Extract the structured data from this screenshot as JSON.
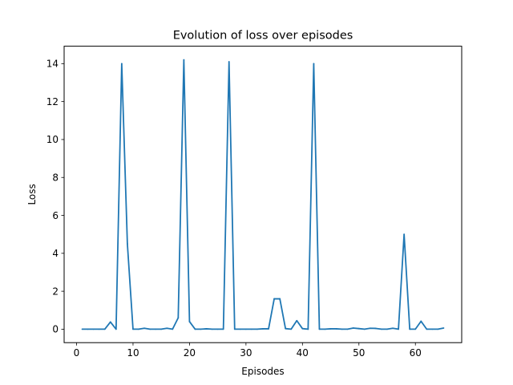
{
  "chart_data": {
    "type": "line",
    "title": "Evolution of loss over episodes",
    "xlabel": "Episodes",
    "ylabel": "Loss",
    "xlim": [
      -2.2,
      68.2
    ],
    "ylim": [
      -0.71,
      14.92
    ],
    "xticks": [
      0,
      10,
      20,
      30,
      40,
      50,
      60
    ],
    "yticks": [
      0,
      2,
      4,
      6,
      8,
      10,
      12,
      14
    ],
    "grid": false,
    "legend": "none",
    "series": [
      {
        "color": "#1f77b4",
        "x": [
          1,
          2,
          3,
          4,
          5,
          6,
          7,
          8,
          9,
          10,
          11,
          12,
          13,
          14,
          15,
          16,
          17,
          18,
          19,
          20,
          21,
          22,
          23,
          24,
          25,
          26,
          27,
          28,
          29,
          30,
          31,
          32,
          33,
          34,
          35,
          36,
          37,
          38,
          39,
          40,
          41,
          42,
          43,
          44,
          45,
          46,
          47,
          48,
          49,
          50,
          51,
          52,
          53,
          54,
          55,
          56,
          57,
          58,
          59,
          60,
          61,
          62,
          63,
          64,
          65
        ],
        "y": [
          0.0,
          0.0,
          0.0,
          0.0,
          0.0,
          0.38,
          0.0,
          14.0,
          4.5,
          0.0,
          0.0,
          0.05,
          0.0,
          0.0,
          0.0,
          0.05,
          0.0,
          0.6,
          14.2,
          0.4,
          0.0,
          0.0,
          0.02,
          0.0,
          0.0,
          0.0,
          14.1,
          0.0,
          0.0,
          0.0,
          0.0,
          0.0,
          0.02,
          0.02,
          1.6,
          1.6,
          0.03,
          0.0,
          0.45,
          0.03,
          0.0,
          14.0,
          0.0,
          0.0,
          0.02,
          0.02,
          0.0,
          0.0,
          0.06,
          0.03,
          0.0,
          0.05,
          0.04,
          0.0,
          0.0,
          0.05,
          0.0,
          5.0,
          0.0,
          0.0,
          0.42,
          0.0,
          0.0,
          0.0,
          0.06
        ]
      }
    ]
  }
}
